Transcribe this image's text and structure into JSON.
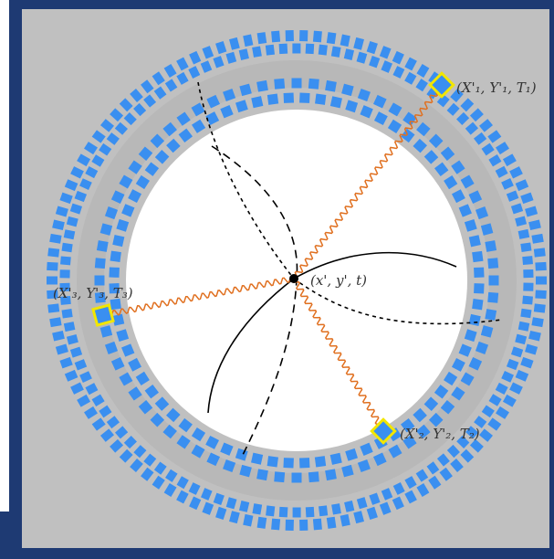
{
  "colors": {
    "frame": "#1e3a73",
    "panel": "#c0c0c0",
    "panel_border": "#1e3a73",
    "detector": "#3a8ff0",
    "ring_gap": "#b8b8b8",
    "field": "#ffffff",
    "photon": "#e07020",
    "hit": "#f2e600",
    "track": "#000000"
  },
  "labels": {
    "event": "(x', y', t)",
    "hit1": "(X'₁, Y'₁, T₁)",
    "hit2": "(X'₂, Y'₂, T₂)",
    "hit3": "(X'₃, Y'₃, T₃)"
  }
}
